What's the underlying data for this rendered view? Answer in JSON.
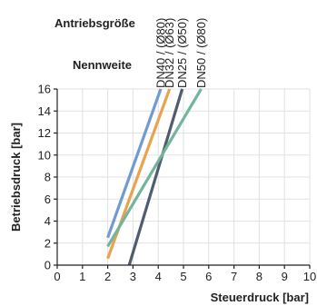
{
  "chart_data": {
    "type": "line",
    "header_top_label": "Antriebsgröße",
    "header_bottom_label": "Nennweite",
    "xlabel": "Steuerdruck [bar]",
    "ylabel": "Betriebsdruck [bar]",
    "xlim": [
      0,
      10
    ],
    "ylim": [
      0,
      16
    ],
    "x_ticks": [
      0,
      1,
      2,
      3,
      4,
      5,
      6,
      7,
      8,
      9,
      10
    ],
    "y_ticks": [
      0,
      2,
      4,
      6,
      8,
      10,
      12,
      14,
      16
    ],
    "grid": true,
    "series": [
      {
        "name": "DN40 / (Ø80)",
        "color": "#6f9bd0",
        "x": [
          2.0,
          4.1
        ],
        "y": [
          2.5,
          16
        ]
      },
      {
        "name": "DN32 / (Ø63)",
        "color": "#e9a24e",
        "x": [
          2.0,
          4.45
        ],
        "y": [
          0.6,
          16
        ]
      },
      {
        "name": "DN25 / (Ø50)",
        "color": "#4f5d6e",
        "x": [
          2.85,
          4.95
        ],
        "y": [
          0,
          16
        ]
      },
      {
        "name": "DN50 / (Ø80)",
        "color": "#72b59a",
        "x": [
          2.0,
          5.7
        ],
        "y": [
          1.7,
          16
        ]
      }
    ]
  }
}
